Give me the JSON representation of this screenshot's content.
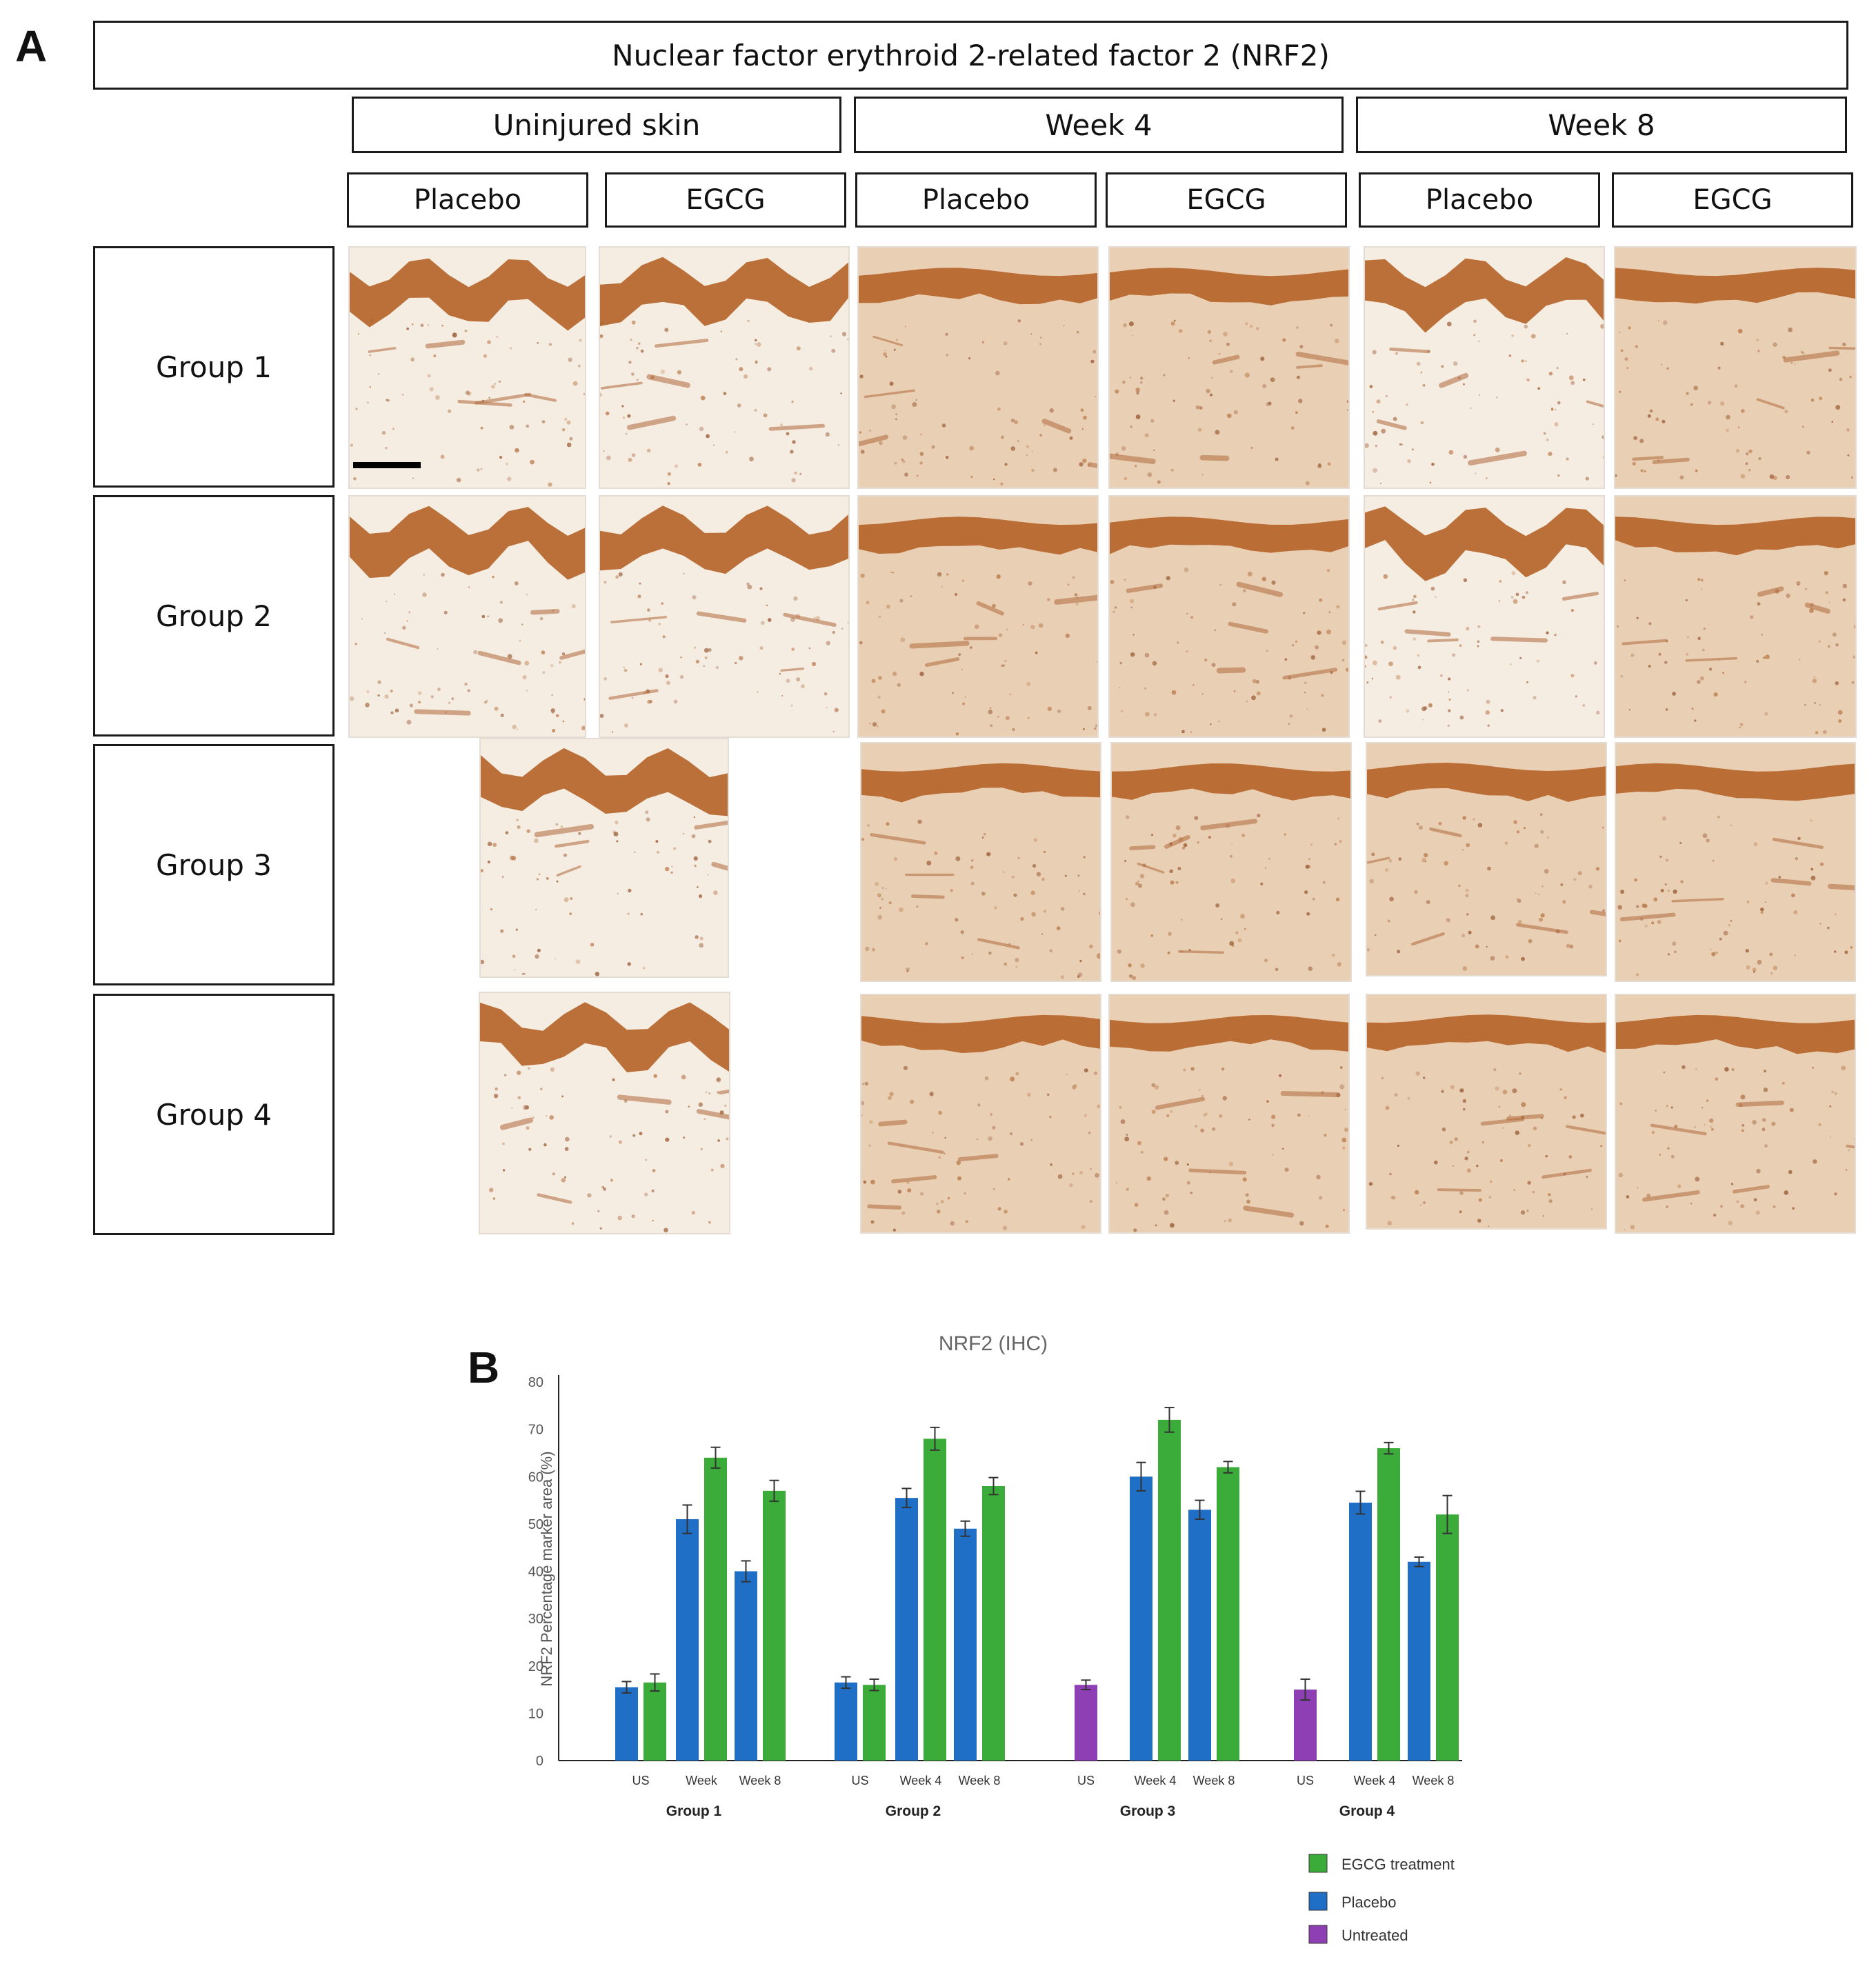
{
  "figure": {
    "panel_a_label": "A",
    "panel_b_label": "B",
    "main_title": "Nuclear factor erythroid 2-related factor 2 (NRF2)",
    "phases": [
      "Uninjured skin",
      "Week 4",
      "Week 8"
    ],
    "treatments": [
      "Placebo",
      "EGCG",
      "Placebo",
      "EGCG",
      "Placebo",
      "EGCG"
    ],
    "groups": [
      "Group 1",
      "Group 2",
      "Group 3",
      "Group 4"
    ],
    "micrograph_description": "IHC micrographs of NRF2-stained skin sections"
  },
  "colors": {
    "egcg": "#3bab39",
    "placebo": "#1f6fc7",
    "untreated": "#8e3fb3",
    "stain_epidermis": "#b5652a",
    "stain_dermis": "#e9cfb3"
  },
  "chart_data": {
    "type": "bar",
    "title": "NRF2 (IHC)",
    "ylabel": "NRF2 Percentage marker area (%)",
    "xlabel": "",
    "ylim": [
      0,
      80
    ],
    "yticks": [
      0,
      10,
      20,
      30,
      40,
      50,
      60,
      70,
      80
    ],
    "grid": false,
    "legend_position": "bottom-right",
    "legend": [
      {
        "name": "EGCG treatment",
        "color": "#3bab39"
      },
      {
        "name": "Placebo",
        "color": "#1f6fc7"
      },
      {
        "name": "Untreated",
        "color": "#8e3fb3"
      }
    ],
    "groups": [
      {
        "name": "Group 1",
        "subgroups": [
          {
            "label": "US",
            "bars": [
              {
                "series": "Placebo",
                "value": 15.5,
                "error": 1.2
              },
              {
                "series": "EGCG treatment",
                "value": 16.5,
                "error": 1.8
              }
            ]
          },
          {
            "label": "Week",
            "bars": [
              {
                "series": "Placebo",
                "value": 51,
                "error": 3
              },
              {
                "series": "EGCG treatment",
                "value": 64,
                "error": 2.2
              }
            ]
          },
          {
            "label": "Week 8",
            "bars": [
              {
                "series": "Placebo",
                "value": 40,
                "error": 2.2
              },
              {
                "series": "EGCG treatment",
                "value": 57,
                "error": 2.2
              }
            ]
          }
        ]
      },
      {
        "name": "Group 2",
        "subgroups": [
          {
            "label": "US",
            "bars": [
              {
                "series": "Placebo",
                "value": 16.5,
                "error": 1.2
              },
              {
                "series": "EGCG treatment",
                "value": 16,
                "error": 1.2
              }
            ]
          },
          {
            "label": "Week 4",
            "bars": [
              {
                "series": "Placebo",
                "value": 55.5,
                "error": 2
              },
              {
                "series": "EGCG treatment",
                "value": 68,
                "error": 2.4
              }
            ]
          },
          {
            "label": "Week 8",
            "bars": [
              {
                "series": "Placebo",
                "value": 49,
                "error": 1.6
              },
              {
                "series": "EGCG treatment",
                "value": 58,
                "error": 1.8
              }
            ]
          }
        ]
      },
      {
        "name": "Group 3",
        "subgroups": [
          {
            "label": "US",
            "bars": [
              {
                "series": "Untreated",
                "value": 16,
                "error": 1
              }
            ]
          },
          {
            "label": "Week 4",
            "bars": [
              {
                "series": "Placebo",
                "value": 60,
                "error": 3
              },
              {
                "series": "EGCG treatment",
                "value": 72,
                "error": 2.6
              }
            ]
          },
          {
            "label": "Week 8",
            "bars": [
              {
                "series": "Placebo",
                "value": 53,
                "error": 2
              },
              {
                "series": "EGCG treatment",
                "value": 62,
                "error": 1.2
              }
            ]
          }
        ]
      },
      {
        "name": "Group 4",
        "subgroups": [
          {
            "label": "US",
            "bars": [
              {
                "series": "Untreated",
                "value": 15,
                "error": 2.2
              }
            ]
          },
          {
            "label": "Week 4",
            "bars": [
              {
                "series": "Placebo",
                "value": 54.5,
                "error": 2.4
              },
              {
                "series": "EGCG treatment",
                "value": 66,
                "error": 1.2
              }
            ]
          },
          {
            "label": "Week 8",
            "bars": [
              {
                "series": "Placebo",
                "value": 42,
                "error": 1
              },
              {
                "series": "EGCG treatment",
                "value": 52,
                "error": 4
              }
            ]
          }
        ]
      }
    ]
  }
}
